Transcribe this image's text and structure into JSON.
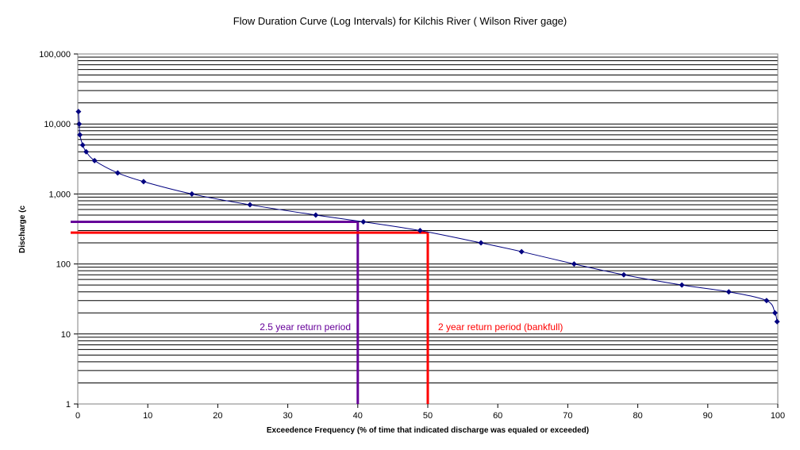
{
  "chart_data": {
    "type": "scatter",
    "title": "Flow Duration Curve (Log Intervals) for Kilchis River ( Wilson River gage)",
    "xlabel": "Exceedence Frequency (% of time that indicated discharge was equaled or exceeded)",
    "ylabel": "Discharge (c",
    "xlim": [
      0,
      100
    ],
    "ylim": [
      1,
      100000
    ],
    "y_scale": "log",
    "grid": true,
    "x_ticks": [
      "0",
      "10",
      "20",
      "30",
      "40",
      "50",
      "60",
      "70",
      "80",
      "90",
      "100"
    ],
    "y_ticks": [
      "1",
      "10",
      "100",
      "1,000",
      "10,000",
      "100,000"
    ],
    "series": [
      {
        "color": "#000080",
        "x": [
          0.1,
          0.2,
          0.3,
          0.7,
          1.2,
          2.4,
          5.7,
          9.4,
          16.3,
          24.6,
          34.0,
          40.8,
          48.9,
          57.6,
          63.4,
          70.9,
          78.0,
          86.3,
          93.0,
          98.4,
          99.6,
          99.9
        ],
        "y": [
          15000,
          10000,
          7000,
          5000,
          4000,
          3000,
          2000,
          1500,
          1000,
          700,
          500,
          400,
          300,
          200,
          150,
          100,
          70,
          50,
          40,
          30,
          20,
          15
        ]
      }
    ],
    "reference_lines": [
      {
        "label": "2.5 year return period",
        "x": 40,
        "y": 400,
        "color": "#660099"
      },
      {
        "label": "2 year return period (bankfull)",
        "x": 50,
        "y": 280,
        "color": "#ff0000"
      }
    ]
  }
}
